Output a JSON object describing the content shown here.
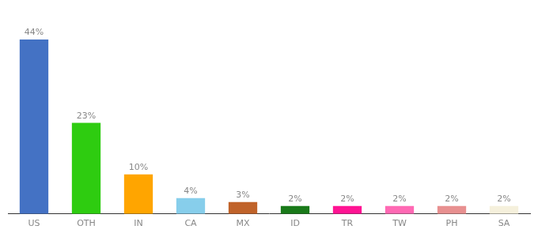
{
  "chart_data": {
    "type": "bar",
    "categories": [
      "US",
      "OTH",
      "IN",
      "CA",
      "MX",
      "ID",
      "TR",
      "TW",
      "PH",
      "SA"
    ],
    "values": [
      44,
      23,
      10,
      4,
      3,
      2,
      2,
      2,
      2,
      2
    ],
    "value_labels": [
      "44%",
      "23%",
      "10%",
      "4%",
      "3%",
      "2%",
      "2%",
      "2%",
      "2%",
      "2%"
    ],
    "colors": [
      "#4472C4",
      "#2ECC10",
      "#FFA500",
      "#87CEEB",
      "#C0632A",
      "#1A7A1A",
      "#FF1493",
      "#FF69B4",
      "#E89090",
      "#F5F0DC"
    ],
    "ylim": [
      0,
      52
    ],
    "grid": false,
    "data_labels": true,
    "tick_labels": "x"
  }
}
